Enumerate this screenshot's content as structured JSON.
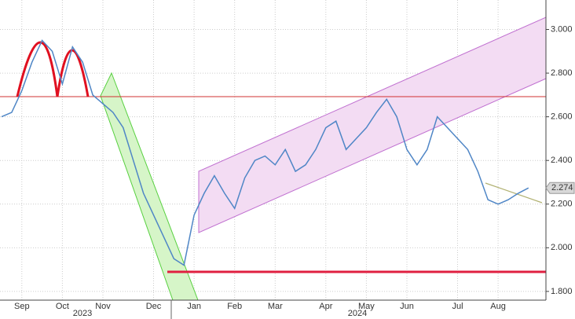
{
  "chart_data": {
    "type": "line",
    "categories": [
      null,
      null,
      "Sep",
      null,
      null,
      null,
      "Oct",
      null,
      null,
      null,
      "Nov",
      null,
      null,
      null,
      null,
      "Dec",
      null,
      null,
      null,
      "Jan",
      null,
      null,
      null,
      "Feb",
      null,
      null,
      null,
      "Mar",
      null,
      null,
      null,
      null,
      "Apr",
      null,
      null,
      null,
      "May",
      null,
      null,
      null,
      "Jun",
      null,
      null,
      null,
      null,
      "Jul",
      null,
      null,
      null,
      "Aug",
      null,
      null,
      null
    ],
    "years": [
      "2023",
      "2024"
    ],
    "series": [
      {
        "color": "#4f86c6",
        "values": [
          2.6,
          2.62,
          2.72,
          2.85,
          2.95,
          2.9,
          2.75,
          2.92,
          2.85,
          2.7,
          2.66,
          2.62,
          2.55,
          2.4,
          2.25,
          2.15,
          2.05,
          1.95,
          1.92,
          2.15,
          2.25,
          2.33,
          2.25,
          2.18,
          2.32,
          2.4,
          2.42,
          2.38,
          2.45,
          2.35,
          2.38,
          2.45,
          2.55,
          2.58,
          2.45,
          2.5,
          2.55,
          2.62,
          2.68,
          2.6,
          2.45,
          2.38,
          2.45,
          2.6,
          2.55,
          2.5,
          2.45,
          2.35,
          2.22,
          2.2,
          2.22,
          2.25,
          2.274
        ]
      }
    ],
    "last_price": 2.274,
    "ylim": [
      1.76,
      3.135
    ],
    "yticks": [
      {
        "value": 1.8,
        "label": "1.800"
      },
      {
        "value": 2.0,
        "label": "2.000"
      },
      {
        "value": 2.2,
        "label": "2.200"
      },
      {
        "value": 2.4,
        "label": "2.400"
      },
      {
        "value": 2.6,
        "label": "2.600"
      },
      {
        "value": 2.8,
        "label": "2.800"
      },
      {
        "value": 3.0,
        "label": "3.000"
      }
    ],
    "grid": true
  }
}
